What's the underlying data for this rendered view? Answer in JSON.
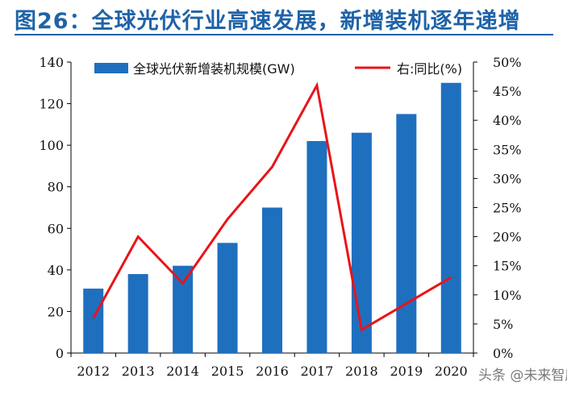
{
  "header": {
    "title": "图26：全球光伏行业高速发展，新增装机逐年递增"
  },
  "watermark": {
    "text": "头条 @未来智库"
  },
  "colors": {
    "title": "#1f63a8",
    "bar": "#1f6fbf",
    "line": "#e8141a",
    "axis": "#000000"
  },
  "chart_data": {
    "type": "bar",
    "categories": [
      "2012",
      "2013",
      "2014",
      "2015",
      "2016",
      "2017",
      "2018",
      "2019",
      "2020"
    ],
    "series": [
      {
        "name": "全球光伏新增装机规模(GW)",
        "type": "bar",
        "axis": "left",
        "values": [
          31,
          38,
          42,
          53,
          70,
          102,
          106,
          115,
          130
        ]
      },
      {
        "name": "右:同比(%)",
        "type": "line",
        "axis": "right",
        "values": [
          6,
          20,
          12,
          23,
          32,
          46,
          4,
          8.5,
          13
        ]
      }
    ],
    "y_left": {
      "range": [
        0,
        140
      ],
      "ticks": [
        "0",
        "20",
        "40",
        "60",
        "80",
        "100",
        "120",
        "140"
      ]
    },
    "y_right": {
      "range": [
        0,
        50
      ],
      "ticks": [
        "0%",
        "5%",
        "10%",
        "15%",
        "20%",
        "25%",
        "30%",
        "35%",
        "40%",
        "45%",
        "50%"
      ]
    },
    "legend": "top",
    "grid": false
  }
}
